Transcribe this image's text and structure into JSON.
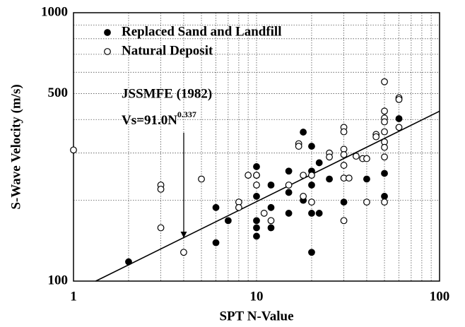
{
  "chart_data": {
    "type": "scatter",
    "xlabel": "SPT  N-Value",
    "ylabel": "S-Wave  Velocity  (m/s)",
    "xscale": "log",
    "yscale": "log",
    "xlim": [
      1,
      100
    ],
    "ylim": [
      100,
      1000
    ],
    "xticks": [
      1,
      10,
      100
    ],
    "yticks": [
      100,
      500,
      1000
    ],
    "grid": true,
    "legend": "upper left",
    "annotation": {
      "title": "JSSMFE (1982)",
      "formula": "Vs=91.0N",
      "exponent": "0.337"
    },
    "fit": {
      "a": 91.0,
      "b": 0.337
    },
    "series": [
      {
        "name": "Replaced Sand and Landfill",
        "color": "#000000",
        "marker": "filled",
        "x": [
          2,
          6,
          6,
          7,
          10,
          10,
          10,
          10,
          10,
          10,
          12,
          12,
          12,
          15,
          15,
          15,
          18,
          18,
          20,
          20,
          20,
          20,
          20,
          22,
          22,
          25,
          30,
          40,
          50,
          50,
          60
        ],
        "values": [
          118,
          188,
          139,
          168,
          267,
          248,
          207,
          168,
          158,
          147,
          228,
          188,
          158,
          257,
          214,
          179,
          359,
          200,
          318,
          257,
          228,
          179,
          128,
          276,
          179,
          240,
          197,
          240,
          252,
          207,
          403
        ]
      },
      {
        "name": "Natural Deposit",
        "color": "#000000",
        "marker": "open",
        "x": [
          1,
          3,
          3,
          3,
          4,
          5,
          8,
          8,
          9,
          10,
          10,
          11,
          12,
          15,
          17,
          17,
          18,
          18,
          20,
          20,
          25,
          25,
          30,
          30,
          30,
          30,
          30,
          30,
          30,
          32,
          35,
          38,
          40,
          40,
          45,
          45,
          50,
          50,
          50,
          50,
          50,
          50,
          50,
          50,
          50,
          60,
          60,
          60
        ],
        "values": [
          308,
          228,
          220,
          158,
          128,
          240,
          197,
          188,
          248,
          248,
          228,
          179,
          168,
          228,
          325,
          318,
          248,
          207,
          248,
          197,
          300,
          290,
          374,
          360,
          310,
          296,
          270,
          242,
          168,
          242,
          292,
          286,
          286,
          197,
          352,
          345,
          553,
          430,
          405,
          392,
          360,
          330,
          315,
          290,
          197,
          482,
          475,
          374
        ]
      }
    ]
  }
}
